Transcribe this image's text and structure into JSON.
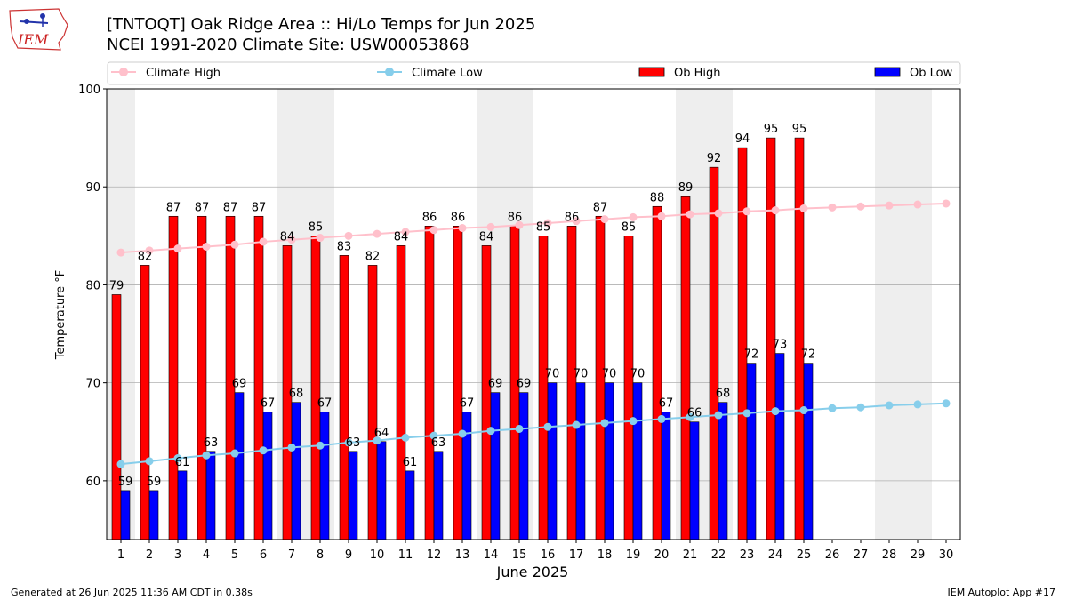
{
  "header": {
    "title_line1": "[TNTOQT] Oak Ridge Area :: Hi/Lo Temps for Jun 2025",
    "title_line2": "NCEI 1991-2020 Climate Site: USW00053868",
    "logo_text": "IEM"
  },
  "footer": {
    "generated": "Generated at 26 Jun 2025 11:36 AM CDT in 0.38s",
    "app": "IEM Autoplot App #17"
  },
  "colors": {
    "ob_high": "#ff0000",
    "ob_low": "#0000ff",
    "climate_high": "#ffc0cb",
    "climate_low": "#87ceeb",
    "weekend_band": "#eeeeee",
    "grid": "#b0b0b0"
  },
  "chart_data": {
    "type": "bar",
    "xlabel": "June 2025",
    "ylabel": "Temperature °F",
    "ylim": [
      54,
      100
    ],
    "yticks": [
      60,
      70,
      80,
      90,
      100
    ],
    "grid": "horizontal",
    "legend_placement": "top",
    "categories": [
      1,
      2,
      3,
      4,
      5,
      6,
      7,
      8,
      9,
      10,
      11,
      12,
      13,
      14,
      15,
      16,
      17,
      18,
      19,
      20,
      21,
      22,
      23,
      24,
      25,
      26,
      27,
      28,
      29,
      30
    ],
    "weekend_days": [
      1,
      7,
      8,
      14,
      15,
      21,
      22,
      28,
      29
    ],
    "series": [
      {
        "name": "Climate High",
        "kind": "line",
        "values": [
          83.3,
          83.5,
          83.7,
          83.9,
          84.1,
          84.4,
          84.6,
          84.8,
          85.0,
          85.2,
          85.4,
          85.6,
          85.8,
          85.9,
          86.1,
          86.3,
          86.5,
          86.7,
          86.9,
          87.0,
          87.2,
          87.3,
          87.5,
          87.6,
          87.8,
          87.9,
          88.0,
          88.1,
          88.2,
          88.3
        ]
      },
      {
        "name": "Climate Low",
        "kind": "line",
        "values": [
          61.7,
          62.0,
          62.3,
          62.6,
          62.8,
          63.1,
          63.4,
          63.6,
          63.9,
          64.1,
          64.4,
          64.6,
          64.8,
          65.1,
          65.3,
          65.5,
          65.7,
          65.9,
          66.1,
          66.3,
          66.5,
          66.7,
          66.9,
          67.1,
          67.2,
          67.4,
          67.5,
          67.7,
          67.8,
          67.9
        ]
      },
      {
        "name": "Ob High",
        "kind": "bar",
        "values": [
          79,
          82,
          87,
          87,
          87,
          87,
          84,
          85,
          83,
          82,
          84,
          86,
          86,
          84,
          86,
          85,
          86,
          87,
          85,
          88,
          89,
          92,
          94,
          95,
          95,
          null,
          null,
          null,
          null,
          null
        ]
      },
      {
        "name": "Ob Low",
        "kind": "bar",
        "values": [
          59,
          59,
          61,
          63,
          69,
          67,
          68,
          67,
          63,
          64,
          61,
          63,
          67,
          69,
          69,
          70,
          70,
          70,
          70,
          67,
          66,
          68,
          72,
          73,
          72,
          null,
          null,
          null,
          null,
          null
        ]
      }
    ]
  }
}
